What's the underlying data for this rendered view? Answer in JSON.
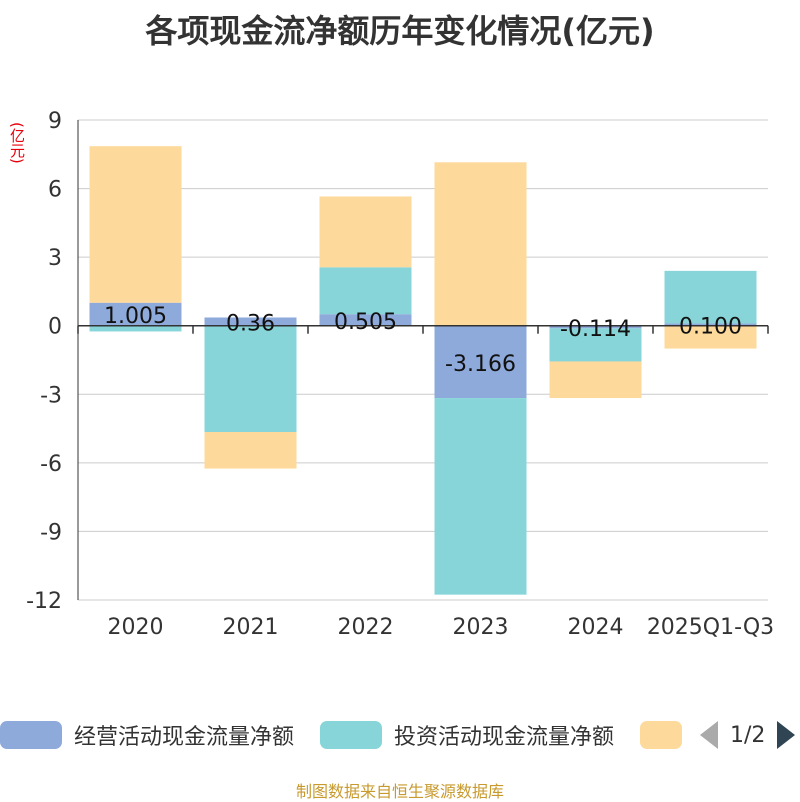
{
  "title": "各项现金流净额历年变化情况(亿元)",
  "unit": "(亿元)",
  "source": "制图数据来自恒生聚源数据库",
  "legend": {
    "items": [
      {
        "label": "经营活动现金流量净额",
        "color": "#8eaadb"
      },
      {
        "label": "投资活动现金流量净额",
        "color": "#87d5d8"
      },
      {
        "label": "",
        "color": "#fdd99b"
      }
    ],
    "page": "1/2"
  },
  "chart_data": {
    "type": "bar",
    "stacked": true,
    "categories": [
      "2020",
      "2021",
      "2022",
      "2023",
      "2024",
      "2025Q1-Q3"
    ],
    "ylim": [
      -12,
      9
    ],
    "yticks": [
      9,
      6,
      3,
      0,
      -3,
      -6,
      -9,
      -12
    ],
    "series": [
      {
        "name": "经营活动现金流量净额",
        "color": "#8eaadb",
        "values": [
          1.005,
          0.36,
          0.505,
          -3.166,
          -0.114,
          0.1
        ]
      },
      {
        "name": "投资活动现金流量净额",
        "color": "#87d5d8",
        "values": [
          -0.25,
          -4.65,
          2.05,
          -8.6,
          -1.45,
          2.3
        ]
      },
      {
        "name": "",
        "color": "#fdd99b",
        "values": [
          6.85,
          -1.6,
          3.1,
          7.15,
          -1.6,
          -1.0
        ]
      }
    ],
    "data_labels": [
      "1.005",
      "0.36",
      "0.505",
      "-3.166",
      "-0.114",
      "0.100"
    ]
  }
}
